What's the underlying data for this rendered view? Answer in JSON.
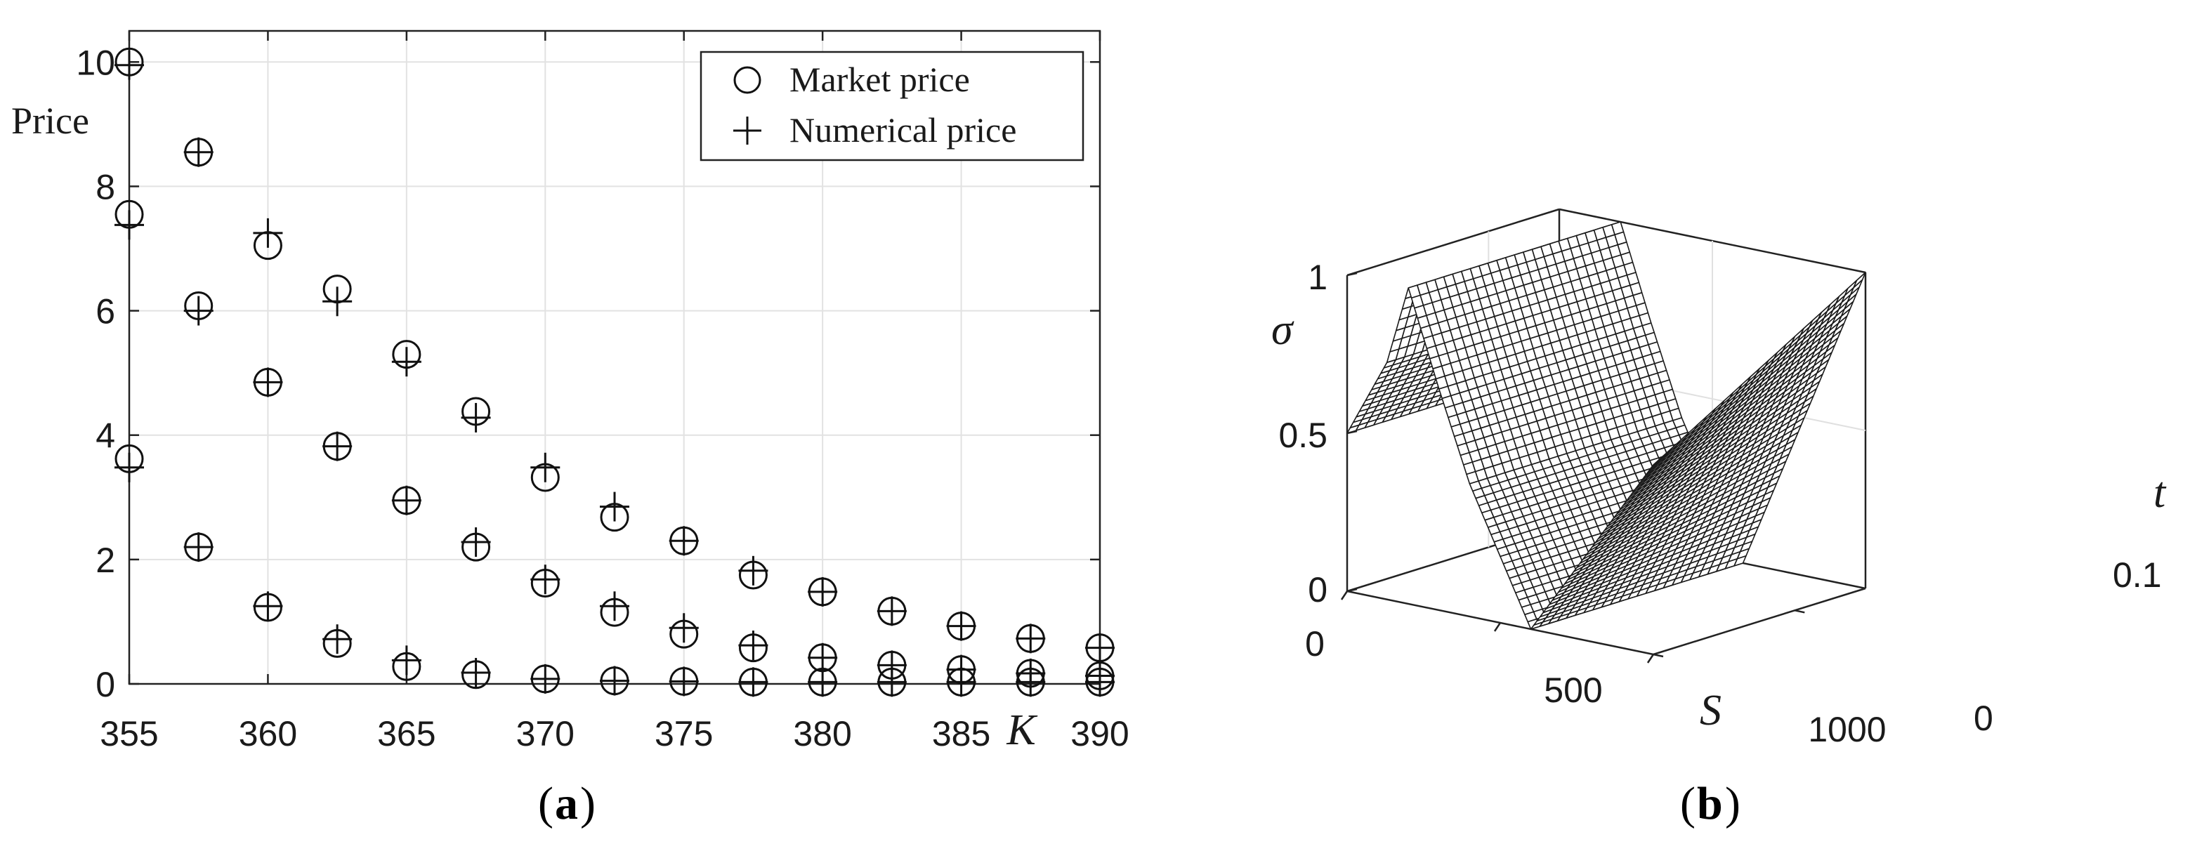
{
  "chart_data": [
    {
      "type": "scatter",
      "panel_label": "a",
      "xlabel": "K",
      "ylabel": "Price",
      "xlim": [
        355,
        390
      ],
      "ylim": [
        0,
        10.5
      ],
      "x_ticks": [
        "355",
        "360",
        "365",
        "370",
        "375",
        "380",
        "385",
        "390"
      ],
      "y_ticks": [
        "0",
        "2",
        "4",
        "6",
        "8",
        "10"
      ],
      "grid": true,
      "legend": {
        "placement": "top-right",
        "entries": [
          "Market price",
          "Numerical price"
        ]
      },
      "series": [
        {
          "name": "Market price",
          "marker": "circle",
          "points": [
            [
              355,
              10.0
            ],
            [
              357.5,
              8.55
            ],
            [
              360,
              7.05
            ],
            [
              362.5,
              6.35
            ],
            [
              365,
              5.3
            ],
            [
              367.5,
              4.38
            ],
            [
              370,
              3.32
            ],
            [
              372.5,
              2.68
            ],
            [
              375,
              2.3
            ],
            [
              377.5,
              1.75
            ],
            [
              380,
              1.48
            ],
            [
              382.5,
              1.17
            ],
            [
              385,
              0.93
            ],
            [
              387.5,
              0.73
            ],
            [
              390,
              0.58
            ],
            [
              355,
              7.55
            ],
            [
              357.5,
              6.08
            ],
            [
              360,
              4.85
            ],
            [
              362.5,
              3.82
            ],
            [
              365,
              2.95
            ],
            [
              367.5,
              2.2
            ],
            [
              370,
              1.62
            ],
            [
              372.5,
              1.15
            ],
            [
              375,
              0.8
            ],
            [
              377.5,
              0.58
            ],
            [
              380,
              0.42
            ],
            [
              382.5,
              0.3
            ],
            [
              385,
              0.23
            ],
            [
              387.5,
              0.17
            ],
            [
              390,
              0.13
            ],
            [
              355,
              3.62
            ],
            [
              357.5,
              2.2
            ],
            [
              360,
              1.23
            ],
            [
              362.5,
              0.65
            ],
            [
              365,
              0.28
            ],
            [
              367.5,
              0.15
            ],
            [
              370,
              0.08
            ],
            [
              372.5,
              0.05
            ],
            [
              375,
              0.04
            ],
            [
              377.5,
              0.03
            ],
            [
              380,
              0.03
            ],
            [
              382.5,
              0.03
            ],
            [
              385,
              0.03
            ],
            [
              387.5,
              0.03
            ],
            [
              390,
              0.03
            ]
          ]
        },
        {
          "name": "Numerical price",
          "marker": "plus",
          "points": [
            [
              355,
              9.95
            ],
            [
              357.5,
              8.55
            ],
            [
              360,
              7.25
            ],
            [
              362.5,
              6.15
            ],
            [
              365,
              5.18
            ],
            [
              367.5,
              4.28
            ],
            [
              370,
              3.48
            ],
            [
              372.5,
              2.85
            ],
            [
              375,
              2.3
            ],
            [
              377.5,
              1.82
            ],
            [
              380,
              1.48
            ],
            [
              382.5,
              1.17
            ],
            [
              385,
              0.93
            ],
            [
              387.5,
              0.73
            ],
            [
              390,
              0.58
            ],
            [
              355,
              7.38
            ],
            [
              357.5,
              6.0
            ],
            [
              360,
              4.85
            ],
            [
              362.5,
              3.82
            ],
            [
              365,
              2.95
            ],
            [
              367.5,
              2.28
            ],
            [
              370,
              1.68
            ],
            [
              372.5,
              1.25
            ],
            [
              375,
              0.9
            ],
            [
              377.5,
              0.62
            ],
            [
              380,
              0.42
            ],
            [
              382.5,
              0.3
            ],
            [
              385,
              0.23
            ],
            [
              387.5,
              0.17
            ],
            [
              390,
              0.13
            ],
            [
              355,
              3.48
            ],
            [
              357.5,
              2.2
            ],
            [
              360,
              1.25
            ],
            [
              362.5,
              0.72
            ],
            [
              365,
              0.38
            ],
            [
              367.5,
              0.18
            ],
            [
              370,
              0.08
            ],
            [
              372.5,
              0.05
            ],
            [
              375,
              0.04
            ],
            [
              377.5,
              0.03
            ],
            [
              380,
              0.03
            ],
            [
              382.5,
              0.03
            ],
            [
              385,
              0.03
            ],
            [
              387.5,
              0.03
            ],
            [
              390,
              0.03
            ]
          ]
        }
      ]
    },
    {
      "type": "surface",
      "panel_label": "b",
      "xlabel": "S",
      "ylabel": "t",
      "zlabel": "σ",
      "xlim": [
        0,
        1000
      ],
      "ylim": [
        0,
        0.15
      ],
      "zlim": [
        0,
        1
      ],
      "x_ticks": [
        "0",
        "500",
        "1000"
      ],
      "y_ticks": [
        "0",
        "0.1"
      ],
      "z_ticks": [
        "0",
        "0.5",
        "1"
      ],
      "surface_color": "#ffffff",
      "mesh_color": "#1a1a1a",
      "profile_S": [
        0,
        130,
        200,
        300,
        400,
        600,
        1000
      ],
      "profile_sigma": [
        0.5,
        0.75,
        1.0,
        0.7,
        0.42,
        0.0,
        0.6
      ],
      "t_growth_sigma_at_S1000": [
        0.6,
        1.0
      ]
    }
  ]
}
